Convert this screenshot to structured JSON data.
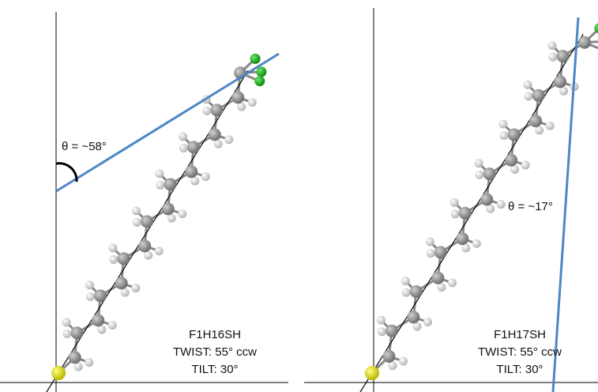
{
  "panels": [
    {
      "angle_label": "θ = ~58°",
      "name": "F1H16SH",
      "twist": "TWIST: 55° ccw",
      "tilt": "TILT: 30°"
    },
    {
      "angle_label": "θ = ~17°",
      "name": "F1H17SH",
      "twist": "TWIST: 55° ccw",
      "tilt": "TILT: 30°"
    }
  ]
}
